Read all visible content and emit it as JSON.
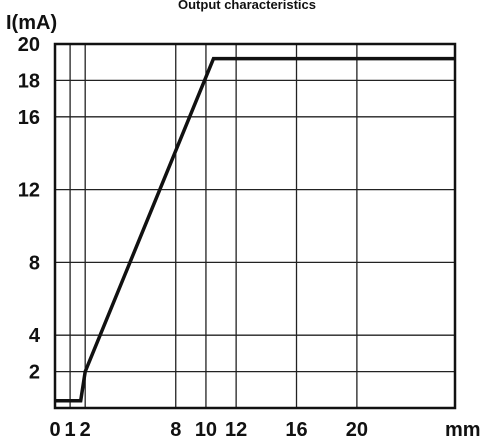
{
  "chart_data": {
    "type": "line",
    "title": "Output characteristics",
    "ylabel": "I(mA)",
    "xlabel": "mm",
    "xlim": [
      0,
      26.5
    ],
    "ylim": [
      0,
      20
    ],
    "xticks": [
      0,
      1,
      2,
      8,
      10,
      12,
      16,
      20
    ],
    "yticks": [
      2,
      4,
      8,
      12,
      16,
      18,
      20
    ],
    "grid": true,
    "series": [
      {
        "x": [
          0,
          1.7,
          2,
          10.5,
          26.5
        ],
        "y": [
          0.4,
          0.4,
          2,
          19.2,
          19.2
        ]
      }
    ]
  }
}
